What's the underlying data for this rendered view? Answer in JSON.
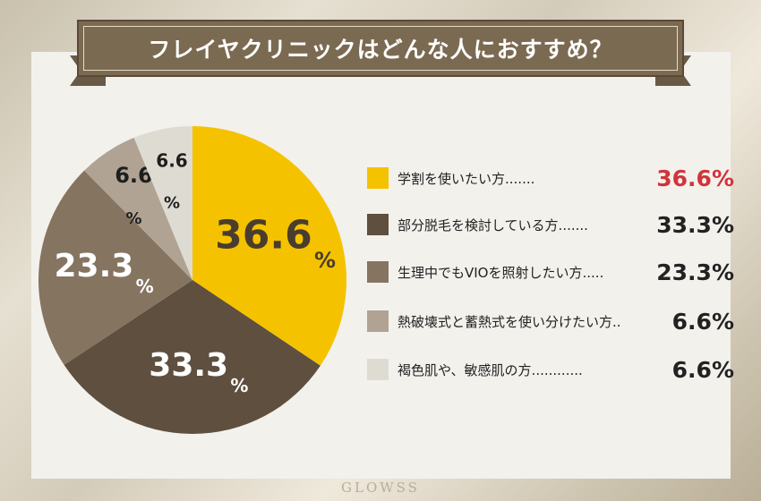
{
  "title": "フレイヤクリニックはどんな人におすすめ？",
  "colors": {
    "banner": "#7b6a52",
    "accent_value": "#d1343c",
    "slices": [
      "#f5c200",
      "#5e4f3f",
      "#857460",
      "#b0a393",
      "#dedcd2"
    ]
  },
  "chart_data": {
    "type": "pie",
    "slices": [
      {
        "label": "学割を使いたい方.......",
        "value": 36.6,
        "display": "36.6%",
        "pie_number": "36.6",
        "unit": "%",
        "color": "#f5c200"
      },
      {
        "label": "部分脱毛を検討している方.......",
        "value": 33.3,
        "display": "33.3%",
        "pie_number": "33.3",
        "unit": "%",
        "color": "#5e4f3f"
      },
      {
        "label": "生理中でもVIOを照射したい方.....",
        "value": 23.3,
        "display": "23.3%",
        "pie_number": "23.3",
        "unit": "%",
        "color": "#857460"
      },
      {
        "label": "熱破壊式と蓄熱式を使い分けたい方..",
        "value": 6.6,
        "display": "6.6%",
        "pie_number": "6.6",
        "unit": "%",
        "color": "#b0a393"
      },
      {
        "label": "褐色肌や、敏感肌の方............",
        "value": 6.6,
        "display": "6.6%",
        "pie_number": "6.6",
        "unit": "%",
        "color": "#dedcd2"
      }
    ]
  },
  "watermark": "GLOWSS"
}
